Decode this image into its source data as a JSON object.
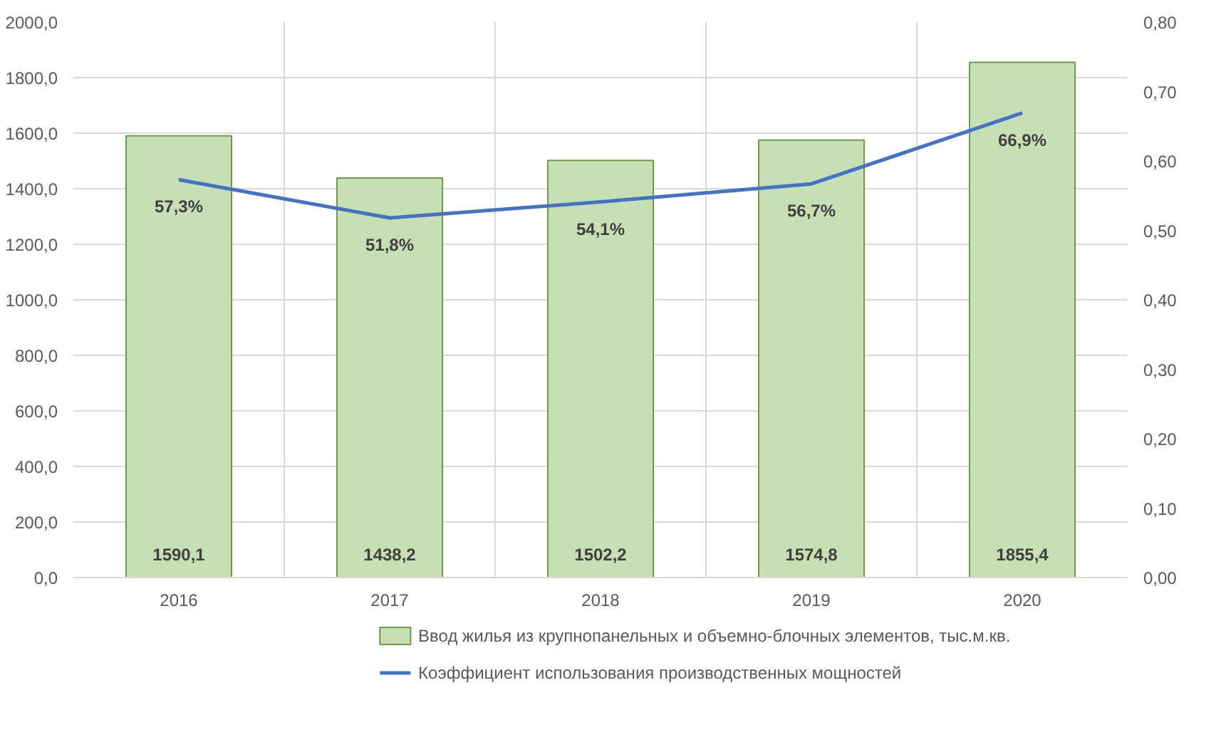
{
  "chart_data": {
    "type": "bar",
    "categories": [
      "2016",
      "2017",
      "2018",
      "2019",
      "2020"
    ],
    "series": [
      {
        "name": "Ввод жилья из крупнопанельных и объемно-блочных элементов, тыс.м.кв.",
        "type": "bar",
        "color": "#c6e0b4",
        "values": [
          1590.1,
          1438.2,
          1502.2,
          1574.8,
          1855.4
        ],
        "value_labels": [
          "1590,1",
          "1438,2",
          "1502,2",
          "1574,8",
          "1855,4"
        ]
      },
      {
        "name": "Коэффициент использования производственных мощностей",
        "type": "line",
        "axis": "y2",
        "color": "#4472c4",
        "values": [
          0.573,
          0.518,
          0.541,
          0.567,
          0.669
        ],
        "value_labels": [
          "57,3%",
          "51,8%",
          "54,1%",
          "56,7%",
          "66,9%"
        ]
      }
    ],
    "ylim": [
      0,
      2000
    ],
    "yticks": [
      {
        "value": 0,
        "label": "0,0"
      },
      {
        "value": 200,
        "label": "200,0"
      },
      {
        "value": 400,
        "label": "400,0"
      },
      {
        "value": 600,
        "label": "600,0"
      },
      {
        "value": 800,
        "label": "800,0"
      },
      {
        "value": 1000,
        "label": "1000,0"
      },
      {
        "value": 1200,
        "label": "1200,0"
      },
      {
        "value": 1400,
        "label": "1400,0"
      },
      {
        "value": 1600,
        "label": "1600,0"
      },
      {
        "value": 1800,
        "label": "1800,0"
      },
      {
        "value": 2000,
        "label": "2000,0"
      }
    ],
    "y2lim": [
      0,
      0.8
    ],
    "y2ticks": [
      {
        "value": 0,
        "label": "0,00"
      },
      {
        "value": 0.1,
        "label": "0,10"
      },
      {
        "value": 0.2,
        "label": "0,20"
      },
      {
        "value": 0.3,
        "label": "0,30"
      },
      {
        "value": 0.4,
        "label": "0,40"
      },
      {
        "value": 0.5,
        "label": "0,50"
      },
      {
        "value": 0.6,
        "label": "0,60"
      },
      {
        "value": 0.7,
        "label": "0,70"
      },
      {
        "value": 0.8,
        "label": "0,80"
      }
    ],
    "grid": true,
    "legend": "bottom"
  }
}
